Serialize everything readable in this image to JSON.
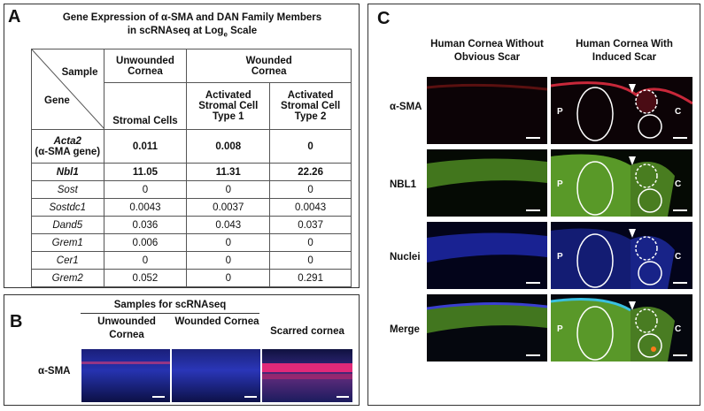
{
  "panelA": {
    "label": "A",
    "title_line1": "Gene Expression of α-SMA and DAN Family Members",
    "title_line2_prefix": "in scRNAseq at Log",
    "title_line2_sub": "e",
    "title_line2_suffix": " Scale",
    "corner_top": "Sample",
    "corner_bottom": "Gene",
    "col_unwounded": "Unwounded Cornea",
    "col_wounded": "Wounded Cornea",
    "sub_stromal": "Stromal Cells",
    "sub_type1": "Activated Stromal Cell Type 1",
    "sub_type2": "Activated Stromal Cell Type 2",
    "rows": [
      {
        "gene": "Acta2",
        "gene_note": "(α-SMA gene)",
        "v1": "0.011",
        "v2": "0.008",
        "v3": "0"
      },
      {
        "gene": "Nbl1",
        "v1": "11.05",
        "v2": "11.31",
        "v3": "22.26"
      },
      {
        "gene": "Sost",
        "v1": "0",
        "v2": "0",
        "v3": "0"
      },
      {
        "gene": "Sostdc1",
        "v1": "0.0043",
        "v2": "0.0037",
        "v3": "0.0043"
      },
      {
        "gene": "Dand5",
        "v1": "0.036",
        "v2": "0.043",
        "v3": "0.037"
      },
      {
        "gene": "Grem1",
        "v1": "0.006",
        "v2": "0",
        "v3": "0"
      },
      {
        "gene": "Cer1",
        "v1": "0",
        "v2": "0",
        "v3": "0"
      },
      {
        "gene": "Grem2",
        "v1": "0.052",
        "v2": "0",
        "v3": "0.291"
      }
    ]
  },
  "panelB": {
    "label": "B",
    "header": "Samples for scRNAseq",
    "col1": "Unwounded Cornea",
    "col2": "Wounded Cornea",
    "col3": "Scarred cornea",
    "row_label": "α-SMA"
  },
  "panelC": {
    "label": "C",
    "col1": "Human Cornea Without Obvious Scar",
    "col2": "Human Cornea With Induced Scar",
    "rows": [
      "α-SMA",
      "NBL1",
      "Nuclei",
      "Merge"
    ],
    "mark_p": "P",
    "mark_c": "C"
  },
  "colors": {
    "red_stain": "#e0203a",
    "green_stain": "#6fbf3a",
    "blue_stain": "#2b3fd8",
    "dark_bg": "#0a0a12"
  }
}
